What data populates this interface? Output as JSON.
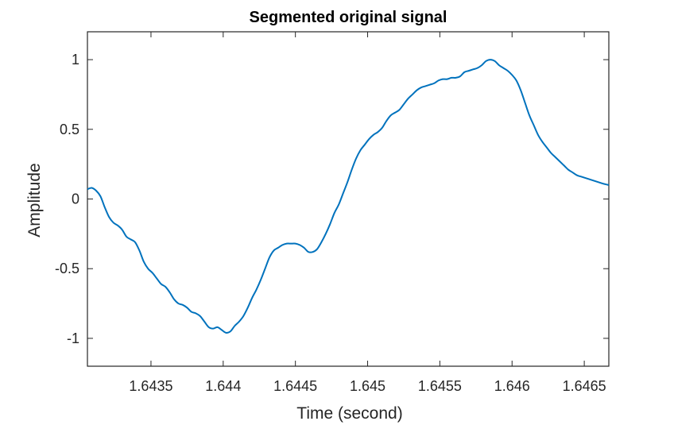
{
  "chart_data": {
    "type": "line",
    "title": "Segmented original signal",
    "xlabel": "Time (second)",
    "ylabel": "Amplitude",
    "xlim": [
      1.64306,
      1.64667
    ],
    "ylim": [
      -1.2,
      1.2
    ],
    "xticks": [
      1.6435,
      1.644,
      1.6445,
      1.645,
      1.6455,
      1.646,
      1.6465
    ],
    "xtick_labels": [
      "1.6435",
      "1.644",
      "1.6445",
      "1.645",
      "1.6455",
      "1.646",
      "1.6465"
    ],
    "yticks": [
      1,
      0.5,
      0,
      -0.5,
      -1
    ],
    "ytick_labels": [
      "1",
      "0.5",
      "0",
      "-0.5",
      "-1"
    ],
    "grid": false,
    "series": [
      {
        "color": "#0072BD",
        "x": [
          1.64306,
          1.64309,
          1.64312,
          1.64315,
          1.64318,
          1.64321,
          1.64324,
          1.64327,
          1.6433,
          1.64333,
          1.64336,
          1.64339,
          1.64342,
          1.64345,
          1.64348,
          1.64351,
          1.64354,
          1.64357,
          1.6436,
          1.64363,
          1.64366,
          1.64369,
          1.64372,
          1.64375,
          1.64378,
          1.64381,
          1.64384,
          1.64387,
          1.6439,
          1.64393,
          1.64396,
          1.64399,
          1.64402,
          1.64405,
          1.64408,
          1.64411,
          1.64414,
          1.64417,
          1.6442,
          1.64423,
          1.64426,
          1.64429,
          1.64432,
          1.64435,
          1.64438,
          1.64441,
          1.64444,
          1.64447,
          1.6445,
          1.64453,
          1.64456,
          1.64459,
          1.64462,
          1.64465,
          1.64468,
          1.64471,
          1.64474,
          1.64477,
          1.6448,
          1.64483,
          1.64486,
          1.64489,
          1.64492,
          1.64495,
          1.64498,
          1.64501,
          1.64504,
          1.64507,
          1.6451,
          1.64513,
          1.64516,
          1.64519,
          1.64522,
          1.64525,
          1.64528,
          1.64531,
          1.64534,
          1.64537,
          1.6454,
          1.64543,
          1.64546,
          1.64549,
          1.64552,
          1.64555,
          1.64558,
          1.64561,
          1.64564,
          1.64567,
          1.6457,
          1.64573,
          1.64576,
          1.64579,
          1.64582,
          1.64585,
          1.64588,
          1.64591,
          1.64594,
          1.64597,
          1.646,
          1.64603,
          1.64606,
          1.64609,
          1.64612,
          1.64615,
          1.64618,
          1.64621,
          1.64624,
          1.64627,
          1.6463,
          1.64633,
          1.64636,
          1.64639,
          1.64642,
          1.64645,
          1.64648,
          1.64651,
          1.64654,
          1.64657,
          1.6466,
          1.64663,
          1.64667
        ],
        "y": [
          0.07,
          0.08,
          0.06,
          0.02,
          -0.06,
          -0.13,
          -0.17,
          -0.19,
          -0.22,
          -0.27,
          -0.29,
          -0.31,
          -0.37,
          -0.45,
          -0.5,
          -0.53,
          -0.57,
          -0.61,
          -0.63,
          -0.67,
          -0.72,
          -0.75,
          -0.76,
          -0.78,
          -0.81,
          -0.82,
          -0.84,
          -0.88,
          -0.92,
          -0.93,
          -0.92,
          -0.94,
          -0.96,
          -0.95,
          -0.91,
          -0.88,
          -0.84,
          -0.78,
          -0.71,
          -0.65,
          -0.58,
          -0.5,
          -0.42,
          -0.37,
          -0.35,
          -0.33,
          -0.32,
          -0.32,
          -0.32,
          -0.33,
          -0.35,
          -0.38,
          -0.38,
          -0.36,
          -0.31,
          -0.25,
          -0.18,
          -0.1,
          -0.04,
          0.04,
          0.12,
          0.21,
          0.29,
          0.35,
          0.39,
          0.43,
          0.46,
          0.48,
          0.51,
          0.56,
          0.6,
          0.62,
          0.64,
          0.68,
          0.72,
          0.75,
          0.78,
          0.8,
          0.81,
          0.82,
          0.83,
          0.85,
          0.86,
          0.86,
          0.87,
          0.87,
          0.88,
          0.91,
          0.92,
          0.93,
          0.94,
          0.96,
          0.99,
          1.0,
          0.99,
          0.96,
          0.94,
          0.92,
          0.89,
          0.85,
          0.78,
          0.69,
          0.6,
          0.53,
          0.46,
          0.41,
          0.37,
          0.33,
          0.3,
          0.27,
          0.24,
          0.21,
          0.19,
          0.17,
          0.16,
          0.15,
          0.14,
          0.13,
          0.12,
          0.11,
          0.1
        ]
      }
    ]
  }
}
